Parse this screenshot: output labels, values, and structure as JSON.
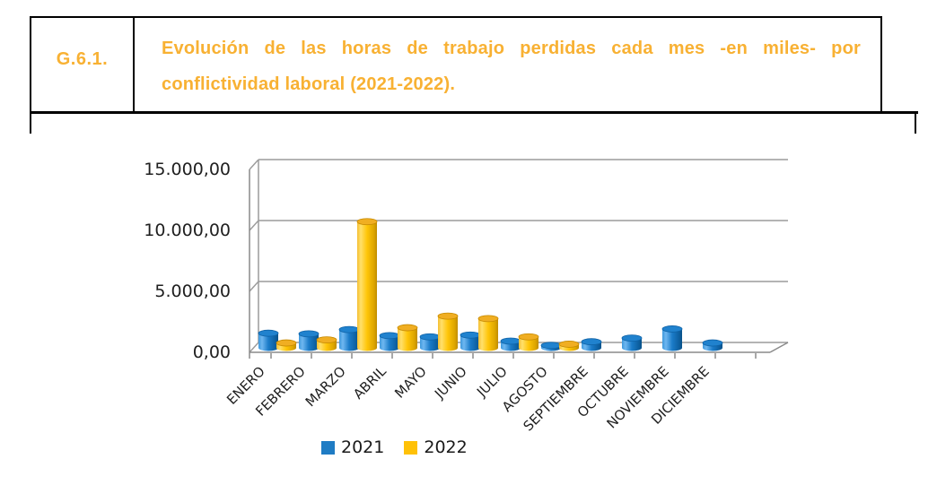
{
  "header": {
    "id_label": "G.6.1.",
    "title_line1": "Evolución de las horas de trabajo perdidas cada mes -en miles- por",
    "title_line2": "conflictividad laboral (2021-2022).",
    "accent_color": "#F8B133",
    "border_color": "#000000"
  },
  "chart_data": {
    "type": "bar",
    "style": "3d-cylinder",
    "categories": [
      "ENERO",
      "FEBRERO",
      "MARZO",
      "ABRIL",
      "MAYO",
      "JUNIO",
      "JULIO",
      "AGOSTO",
      "SEPTIEMBRE",
      "OCTUBRE",
      "NOVIEMBRE",
      "DICIEMBRE"
    ],
    "series": [
      {
        "name": "2021",
        "color": "#1F7CC4",
        "values": [
          1200,
          1150,
          1500,
          1000,
          900,
          1050,
          550,
          200,
          500,
          800,
          1550,
          400
        ]
      },
      {
        "name": "2022",
        "color": "#FFC107",
        "values": [
          400,
          650,
          10350,
          1650,
          2600,
          2400,
          900,
          300,
          null,
          null,
          null,
          null
        ]
      }
    ],
    "xlabel": "",
    "ylabel": "",
    "ylim": [
      0,
      15000
    ],
    "ytick_interval": 5000,
    "ytick_labels": [
      "0,00",
      "5.000,00",
      "10.000,00",
      "15.000,00"
    ],
    "grid": true,
    "gridline_color": "#9C9C9C",
    "legend_position": "bottom"
  }
}
